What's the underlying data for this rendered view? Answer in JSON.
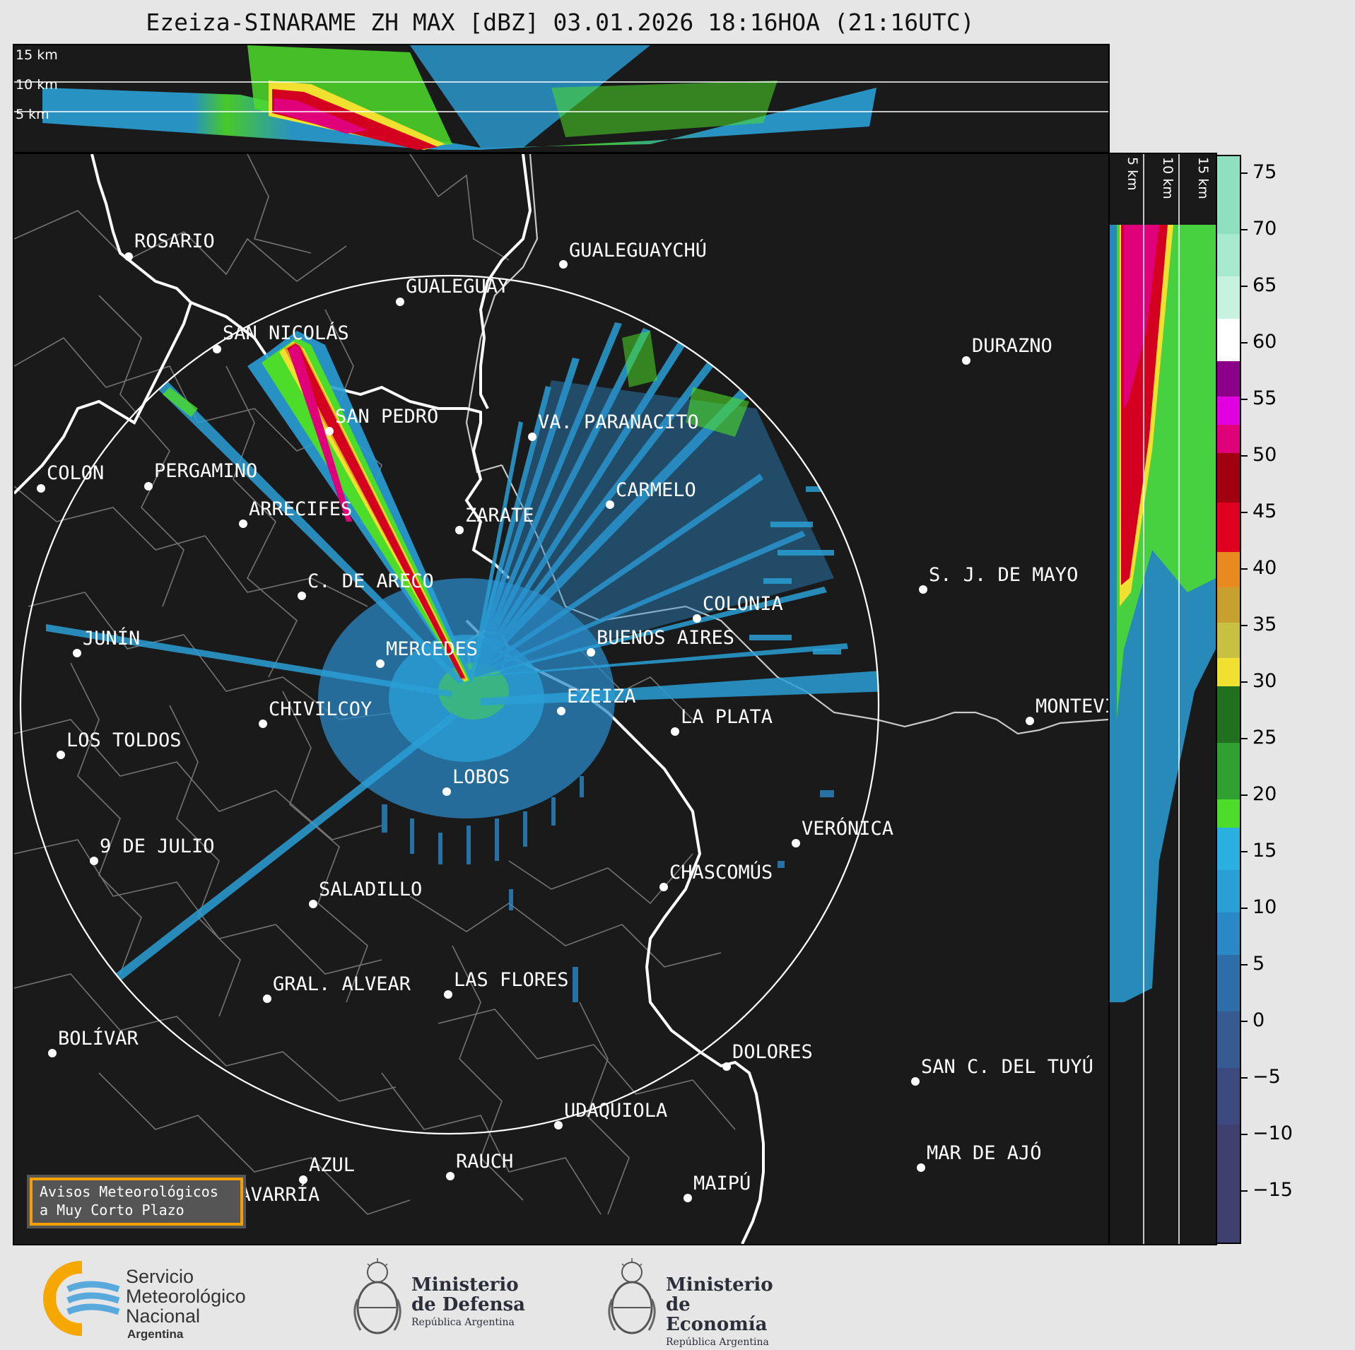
{
  "title": "Ezeiza-SINARAME ZH MAX [dBZ] 03.01.2026 18:16HOA (21:16UTC)",
  "top_panel": {
    "height_labels": [
      "15 km",
      "10 km",
      "5 km"
    ]
  },
  "side_panel": {
    "height_labels": [
      "5 km",
      "10 km",
      "15 km"
    ]
  },
  "colorbar": {
    "unit": "dBZ",
    "ticks": [
      "75",
      "70",
      "65",
      "60",
      "55",
      "50",
      "45",
      "40",
      "35",
      "30",
      "25",
      "20",
      "15",
      "10",
      "5",
      "0",
      "−5",
      "−10",
      "−15"
    ],
    "range": [
      -20,
      77
    ]
  },
  "cities": [
    {
      "name": "ROSARIO"
    },
    {
      "name": "GUALEGUAYCHÚ"
    },
    {
      "name": "GUALEGUAY"
    },
    {
      "name": "SAN NICOLÁS"
    },
    {
      "name": "DURAZNO"
    },
    {
      "name": "SAN PEDRO"
    },
    {
      "name": "VA. PARANACITO"
    },
    {
      "name": "COLON"
    },
    {
      "name": "PERGAMINO"
    },
    {
      "name": "CARMELO"
    },
    {
      "name": "ARRECIFES"
    },
    {
      "name": "ZARATE"
    },
    {
      "name": "S. J. DE MAYO"
    },
    {
      "name": "C. DE ARECO"
    },
    {
      "name": "COLONIA"
    },
    {
      "name": "BUENOS AIRES"
    },
    {
      "name": "JUNÍN"
    },
    {
      "name": "MERCEDES"
    },
    {
      "name": "EZEIZA"
    },
    {
      "name": "MONTEVIDEO"
    },
    {
      "name": "CHIVILCOY"
    },
    {
      "name": "LA PLATA"
    },
    {
      "name": "LOS TOLDOS"
    },
    {
      "name": "LOBOS"
    },
    {
      "name": "VERÓNICA"
    },
    {
      "name": "9 DE JULIO"
    },
    {
      "name": "CHASCOMÚS"
    },
    {
      "name": "SALADILLO"
    },
    {
      "name": "GRAL. ALVEAR"
    },
    {
      "name": "LAS FLORES"
    },
    {
      "name": "BOLÍVAR"
    },
    {
      "name": "DOLORES"
    },
    {
      "name": "SAN C. DEL TUYÚ"
    },
    {
      "name": "UDAQUIOLA"
    },
    {
      "name": "MAR DE AJÓ"
    },
    {
      "name": "AZUL"
    },
    {
      "name": "RAUCH"
    },
    {
      "name": "OLAVARRÍA"
    },
    {
      "name": "MAIPÚ"
    }
  ],
  "aviso": {
    "line1": "Avisos Meteorológicos",
    "line2": "a Muy Corto Plazo"
  },
  "logos": {
    "smn": {
      "line1": "Servicio",
      "line2": "Meteorológico",
      "line3": "Nacional",
      "line4": "Argentina"
    },
    "defensa": {
      "line1": "Ministerio",
      "line2": "de Defensa",
      "line3": "República Argentina"
    },
    "economia": {
      "line1": "Ministerio",
      "line2": "de Economía",
      "line3": "República Argentina"
    }
  },
  "colors": {
    "background": "#1a1a1a",
    "frame": "#e6e6e6",
    "accent": "#f5a000"
  }
}
